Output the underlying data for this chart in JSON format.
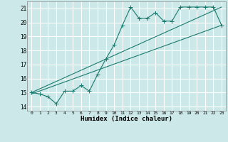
{
  "xlabel": "Humidex (Indice chaleur)",
  "ylabel": "",
  "background_color": "#cce8e8",
  "grid_color": "#ffffff",
  "line_color": "#1a7a6e",
  "xlim": [
    -0.5,
    23.5
  ],
  "ylim": [
    13.7,
    21.5
  ],
  "xticks": [
    0,
    1,
    2,
    3,
    4,
    5,
    6,
    7,
    8,
    9,
    10,
    11,
    12,
    13,
    14,
    15,
    16,
    17,
    18,
    19,
    20,
    21,
    22,
    23
  ],
  "yticks": [
    14,
    15,
    16,
    17,
    18,
    19,
    20,
    21
  ],
  "series1_x": [
    0,
    1,
    2,
    3,
    4,
    5,
    6,
    7,
    8,
    9,
    10,
    11,
    12,
    13,
    14,
    15,
    16,
    17,
    18,
    19,
    20,
    21,
    22,
    23
  ],
  "series1_y": [
    15.0,
    14.9,
    14.7,
    14.2,
    15.1,
    15.1,
    15.5,
    15.1,
    16.3,
    17.4,
    18.4,
    19.8,
    21.1,
    20.3,
    20.3,
    20.7,
    20.1,
    20.1,
    21.1,
    21.1,
    21.1,
    21.1,
    21.1,
    19.8
  ],
  "series2_x": [
    0,
    23
  ],
  "series2_y": [
    14.9,
    19.8
  ],
  "series3_x": [
    0,
    23
  ],
  "series3_y": [
    15.0,
    21.1
  ],
  "marker_size": 3,
  "line_width": 0.8
}
